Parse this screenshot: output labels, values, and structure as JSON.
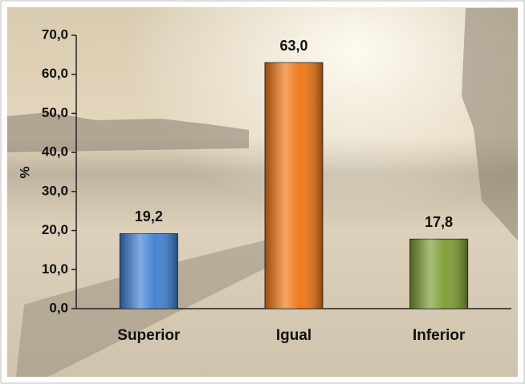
{
  "chart_data": {
    "type": "bar",
    "y_label": "%",
    "categories": [
      "Superior",
      "Igual",
      "Inferior"
    ],
    "values": [
      19.2,
      63.0,
      17.8
    ],
    "value_labels": [
      "19,2",
      "63,0",
      "17,8"
    ],
    "colors": [
      "#3d7fd3",
      "#f0730f",
      "#7b9b2f"
    ],
    "ylim": [
      0,
      70
    ],
    "yticks": [
      {
        "value": 0,
        "label": "0,0"
      },
      {
        "value": 10,
        "label": "10,0"
      },
      {
        "value": 20,
        "label": "20,0"
      },
      {
        "value": 30,
        "label": "30,0"
      },
      {
        "value": 40,
        "label": "40,0"
      },
      {
        "value": 50,
        "label": "50,0"
      },
      {
        "value": 60,
        "label": "60,0"
      },
      {
        "value": 70,
        "label": "70,0"
      }
    ]
  }
}
